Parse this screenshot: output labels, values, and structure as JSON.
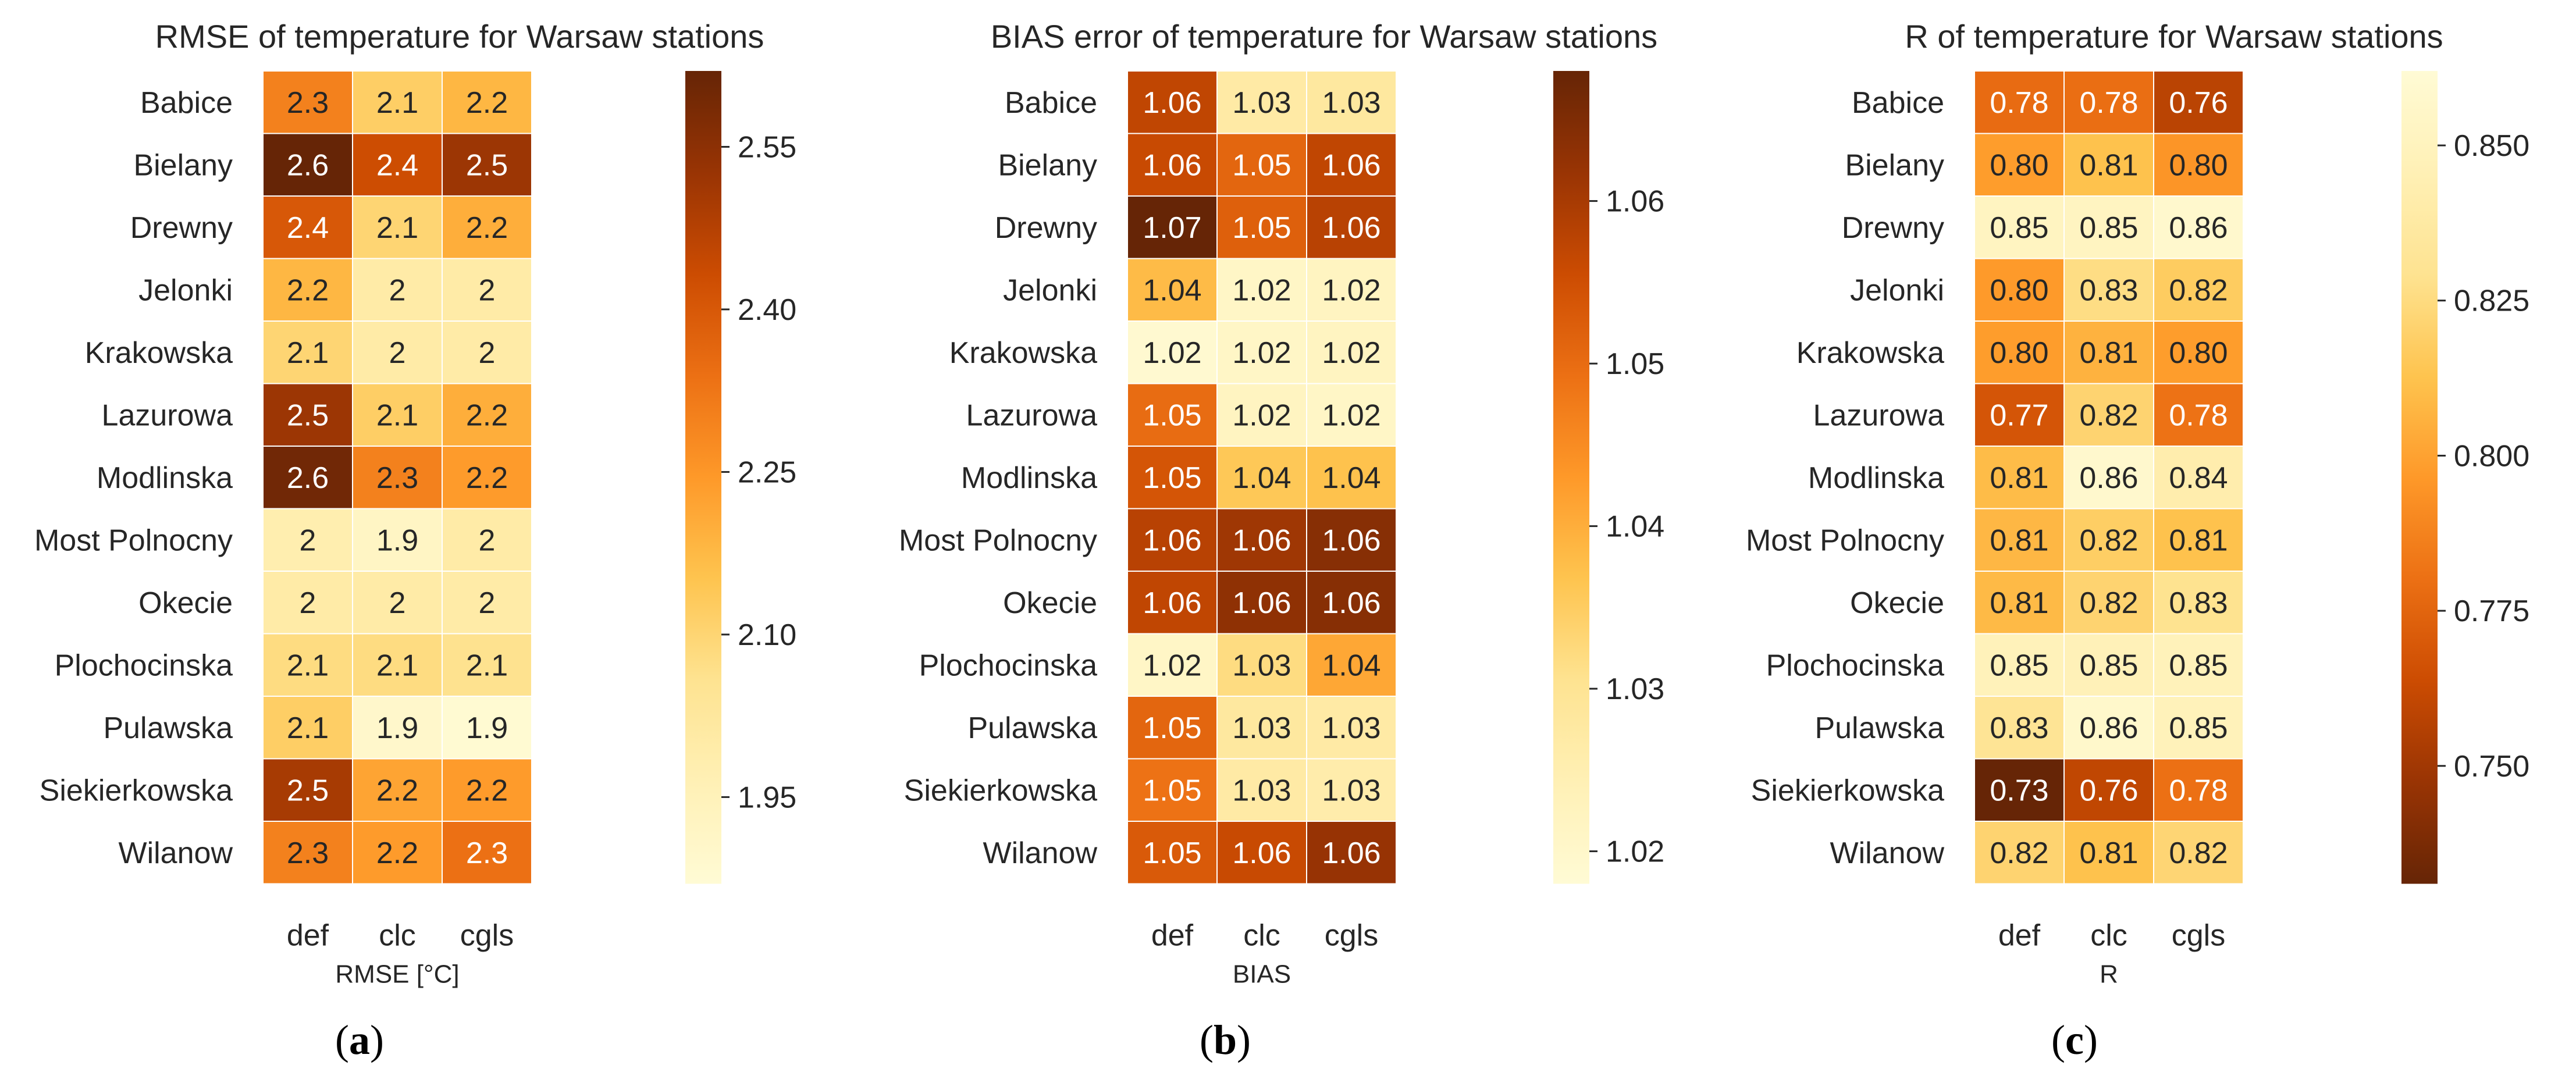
{
  "colors": {
    "cmap": [
      "#fffbd5",
      "#fff0b5",
      "#fee391",
      "#fec44f",
      "#fe9929",
      "#ec7014",
      "#cc4c02",
      "#993404",
      "#662506"
    ],
    "text_on_light": "#262626",
    "text_on_dark": "#ffffff",
    "cell_border": "#ffffff"
  },
  "chart_data": [
    {
      "type": "heatmap",
      "panel_label": "a",
      "title": "RMSE of temperature for Warsaw stations",
      "xlabel": "RMSE [°C]",
      "categories": [
        "def",
        "clc",
        "cgls"
      ],
      "rows": [
        "Babice",
        "Bielany",
        "Drewny",
        "Jelonki",
        "Krakowska",
        "Lazurowa",
        "Modlinska",
        "Most Polnocny",
        "Okecie",
        "Plochocinska",
        "Pulawska",
        "Siekierkowska",
        "Wilanow"
      ],
      "labels": [
        [
          "2.3",
          "2.1",
          "2.2"
        ],
        [
          "2.6",
          "2.4",
          "2.5"
        ],
        [
          "2.4",
          "2.1",
          "2.2"
        ],
        [
          "2.2",
          "2",
          "2"
        ],
        [
          "2.1",
          "2",
          "2"
        ],
        [
          "2.5",
          "2.1",
          "2.2"
        ],
        [
          "2.6",
          "2.3",
          "2.2"
        ],
        [
          "2",
          "1.9",
          "2"
        ],
        [
          "2",
          "2",
          "2"
        ],
        [
          "2.1",
          "2.1",
          "2.1"
        ],
        [
          "2.1",
          "1.9",
          "1.9"
        ],
        [
          "2.5",
          "2.2",
          "2.2"
        ],
        [
          "2.3",
          "2.2",
          "2.3"
        ]
      ],
      "values": [
        [
          2.3,
          2.12,
          2.18
        ],
        [
          2.62,
          2.43,
          2.52
        ],
        [
          2.4,
          2.1,
          2.2
        ],
        [
          2.18,
          2.0,
          2.0
        ],
        [
          2.1,
          2.0,
          2.0
        ],
        [
          2.52,
          2.12,
          2.2
        ],
        [
          2.6,
          2.3,
          2.24
        ],
        [
          1.98,
          1.92,
          2.0
        ],
        [
          2.0,
          2.0,
          2.0
        ],
        [
          2.08,
          2.08,
          2.06
        ],
        [
          2.12,
          1.9,
          1.88
        ],
        [
          2.5,
          2.22,
          2.24
        ],
        [
          2.3,
          2.24,
          2.34
        ]
      ],
      "vmin": 1.87,
      "vmax": 2.62,
      "reverse_cmap": false,
      "colorbar_ticks": [
        1.95,
        2.1,
        2.25,
        2.4,
        2.55
      ],
      "colorbar_labels": [
        "1.95",
        "2.10",
        "2.25",
        "2.40",
        "2.55"
      ]
    },
    {
      "type": "heatmap",
      "panel_label": "b",
      "title": "BIAS error of temperature for Warsaw stations",
      "xlabel": "BIAS",
      "categories": [
        "def",
        "clc",
        "cgls"
      ],
      "rows": [
        "Babice",
        "Bielany",
        "Drewny",
        "Jelonki",
        "Krakowska",
        "Lazurowa",
        "Modlinska",
        "Most Polnocny",
        "Okecie",
        "Plochocinska",
        "Pulawska",
        "Siekierkowska",
        "Wilanow"
      ],
      "labels": [
        [
          "1.06",
          "1.03",
          "1.03"
        ],
        [
          "1.06",
          "1.05",
          "1.06"
        ],
        [
          "1.07",
          "1.05",
          "1.06"
        ],
        [
          "1.04",
          "1.02",
          "1.02"
        ],
        [
          "1.02",
          "1.02",
          "1.02"
        ],
        [
          "1.05",
          "1.02",
          "1.02"
        ],
        [
          "1.05",
          "1.04",
          "1.04"
        ],
        [
          "1.06",
          "1.06",
          "1.06"
        ],
        [
          "1.06",
          "1.06",
          "1.06"
        ],
        [
          "1.02",
          "1.03",
          "1.04"
        ],
        [
          "1.05",
          "1.03",
          "1.03"
        ],
        [
          "1.05",
          "1.03",
          "1.03"
        ],
        [
          "1.05",
          "1.06",
          "1.06"
        ]
      ],
      "values": [
        [
          1.057,
          1.027,
          1.028
        ],
        [
          1.056,
          1.051,
          1.057
        ],
        [
          1.068,
          1.052,
          1.058
        ],
        [
          1.038,
          1.021,
          1.022
        ],
        [
          1.019,
          1.021,
          1.022
        ],
        [
          1.05,
          1.022,
          1.021
        ],
        [
          1.054,
          1.036,
          1.037
        ],
        [
          1.058,
          1.061,
          1.064
        ],
        [
          1.057,
          1.063,
          1.064
        ],
        [
          1.021,
          1.032,
          1.041
        ],
        [
          1.051,
          1.028,
          1.027
        ],
        [
          1.049,
          1.027,
          1.026
        ],
        [
          1.053,
          1.056,
          1.062
        ]
      ],
      "vmin": 1.018,
      "vmax": 1.068,
      "reverse_cmap": false,
      "colorbar_ticks": [
        1.02,
        1.03,
        1.04,
        1.05,
        1.06
      ],
      "colorbar_labels": [
        "1.02",
        "1.03",
        "1.04",
        "1.05",
        "1.06"
      ]
    },
    {
      "type": "heatmap",
      "panel_label": "c",
      "title": "R of temperature for Warsaw stations",
      "xlabel": "R",
      "categories": [
        "def",
        "clc",
        "cgls"
      ],
      "rows": [
        "Babice",
        "Bielany",
        "Drewny",
        "Jelonki",
        "Krakowska",
        "Lazurowa",
        "Modlinska",
        "Most Polnocny",
        "Okecie",
        "Plochocinska",
        "Pulawska",
        "Siekierkowska",
        "Wilanow"
      ],
      "labels": [
        [
          "0.78",
          "0.78",
          "0.76"
        ],
        [
          "0.80",
          "0.81",
          "0.80"
        ],
        [
          "0.85",
          "0.85",
          "0.86"
        ],
        [
          "0.80",
          "0.83",
          "0.82"
        ],
        [
          "0.80",
          "0.81",
          "0.80"
        ],
        [
          "0.77",
          "0.82",
          "0.78"
        ],
        [
          "0.81",
          "0.86",
          "0.84"
        ],
        [
          "0.81",
          "0.82",
          "0.81"
        ],
        [
          "0.81",
          "0.82",
          "0.83"
        ],
        [
          "0.85",
          "0.85",
          "0.85"
        ],
        [
          "0.83",
          "0.86",
          "0.85"
        ],
        [
          "0.73",
          "0.76",
          "0.78"
        ],
        [
          "0.82",
          "0.81",
          "0.82"
        ]
      ],
      "values": [
        [
          0.778,
          0.779,
          0.758
        ],
        [
          0.798,
          0.812,
          0.795
        ],
        [
          0.852,
          0.852,
          0.858
        ],
        [
          0.797,
          0.826,
          0.817
        ],
        [
          0.798,
          0.806,
          0.798
        ],
        [
          0.768,
          0.821,
          0.781
        ],
        [
          0.81,
          0.858,
          0.842
        ],
        [
          0.808,
          0.818,
          0.812
        ],
        [
          0.809,
          0.821,
          0.829
        ],
        [
          0.848,
          0.847,
          0.848
        ],
        [
          0.831,
          0.857,
          0.848
        ],
        [
          0.731,
          0.76,
          0.78
        ],
        [
          0.821,
          0.812,
          0.822
        ]
      ],
      "vmin": 0.731,
      "vmax": 0.862,
      "reverse_cmap": true,
      "colorbar_ticks": [
        0.75,
        0.775,
        0.8,
        0.825,
        0.85
      ],
      "colorbar_labels": [
        "0.750",
        "0.775",
        "0.800",
        "0.825",
        "0.850"
      ]
    }
  ]
}
